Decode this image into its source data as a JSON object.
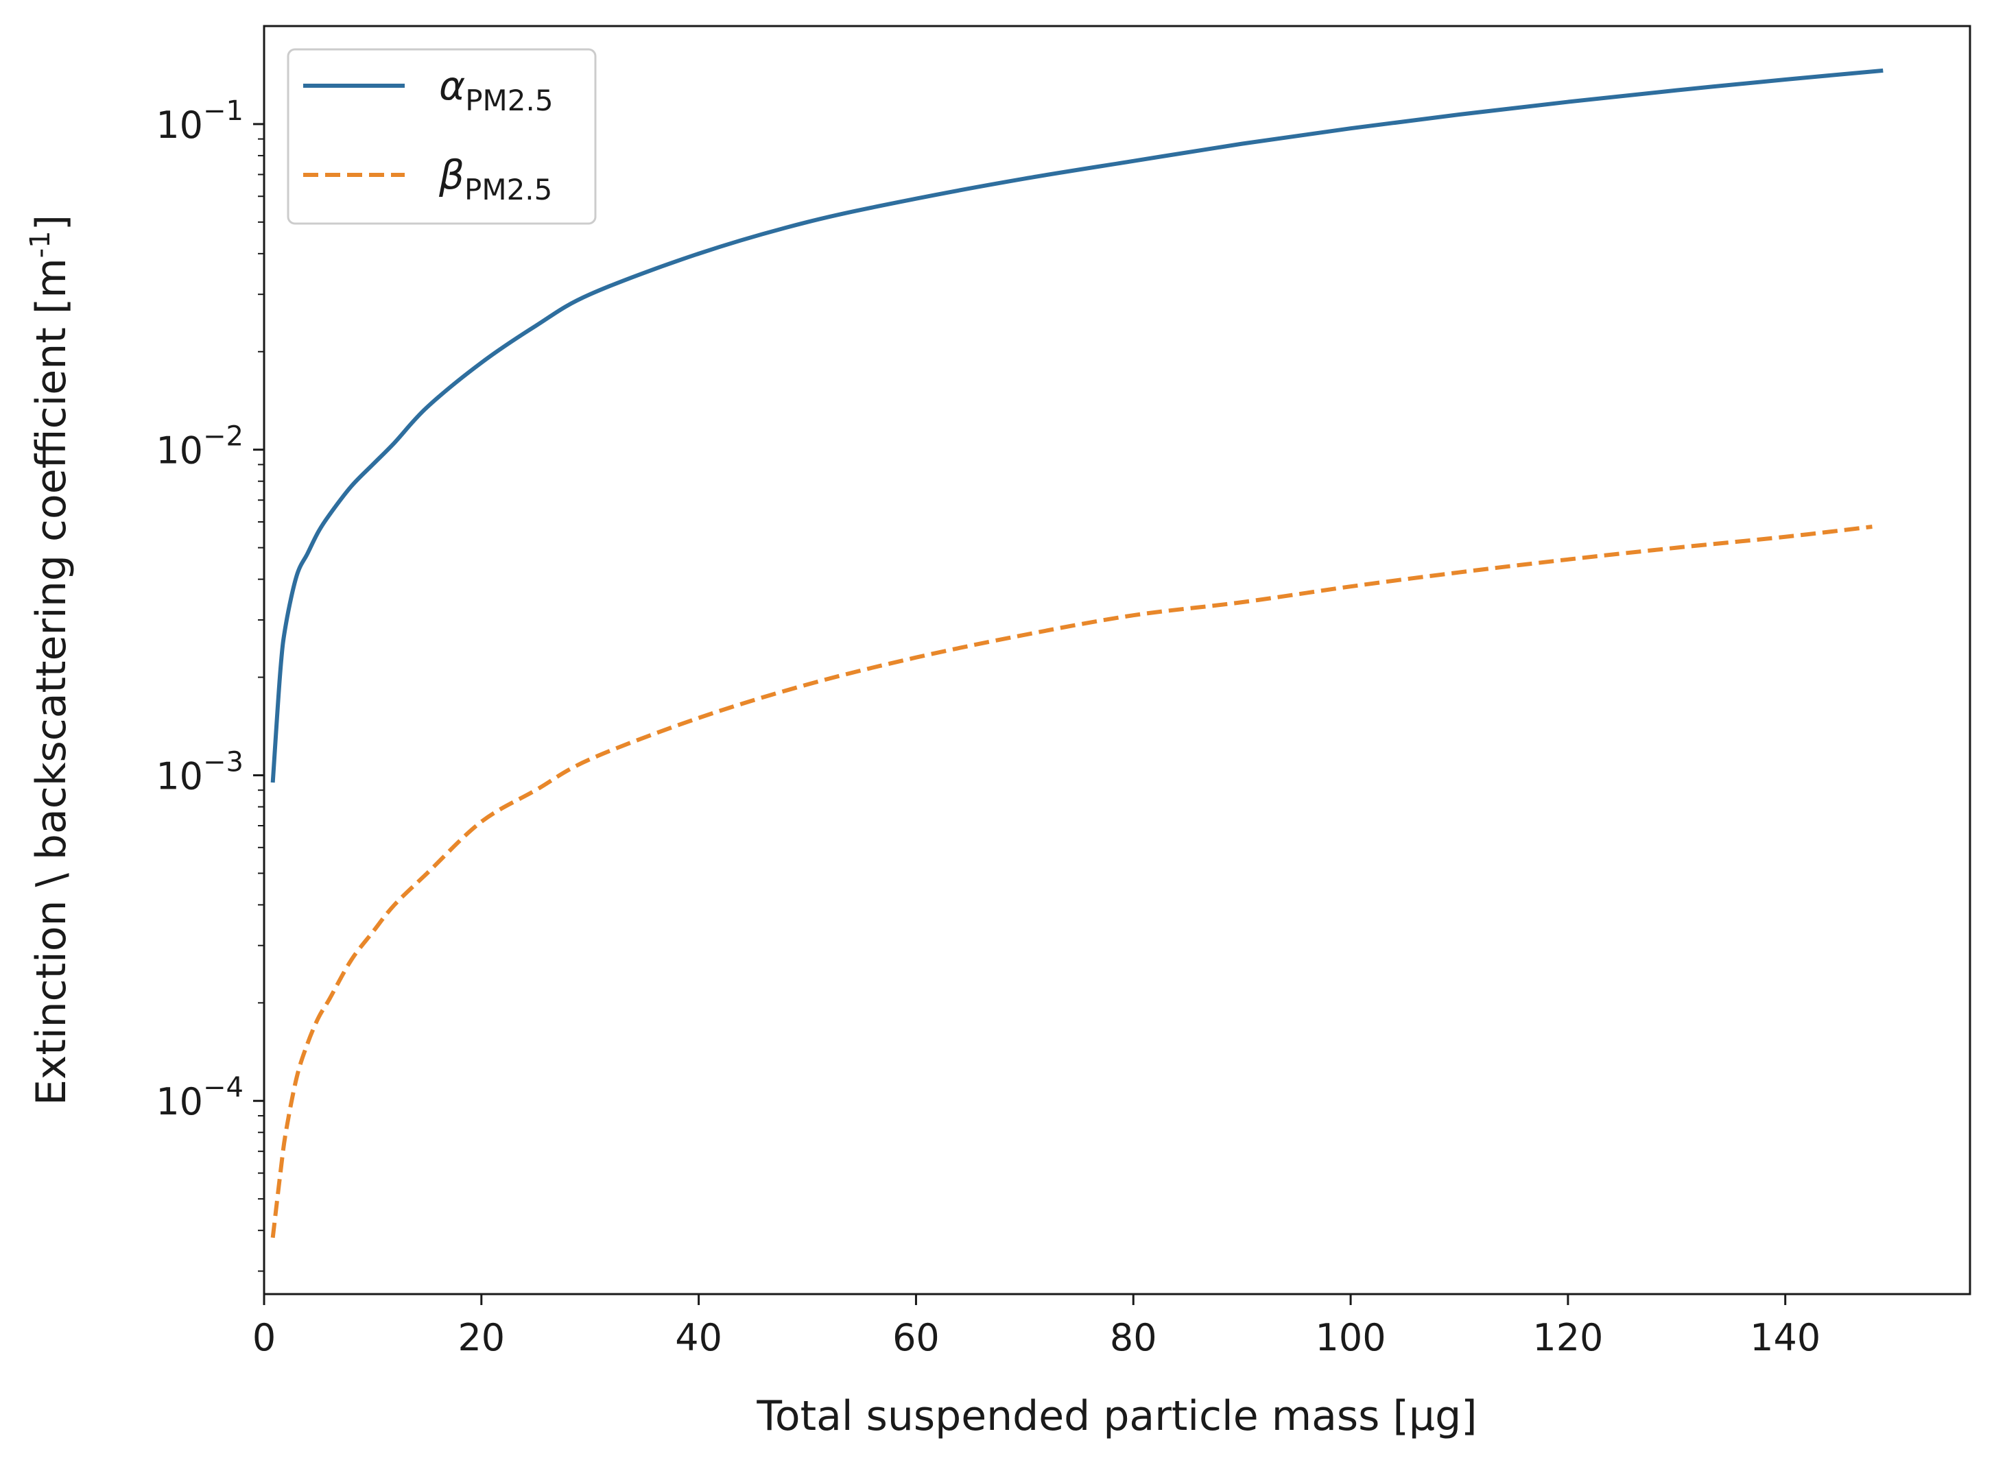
{
  "chart_data": {
    "type": "line",
    "xlabel": "Total suspended particle mass [µg]",
    "ylabel_main": "Extinction \\ backscattering coefficient [m",
    "ylabel_exp": "-1",
    "ylabel_close": "]",
    "xlim": [
      0,
      157
    ],
    "ylim": [
      2.55e-05,
      0.2
    ],
    "yscale": "log",
    "grid": false,
    "legend_position": "top-left",
    "x_ticks": [
      0,
      20,
      40,
      60,
      80,
      100,
      120,
      140
    ],
    "y_ticks": [
      {
        "value": 0.0001,
        "base": "10",
        "exp": "−4"
      },
      {
        "value": 0.001,
        "base": "10",
        "exp": "−3"
      },
      {
        "value": 0.01,
        "base": "10",
        "exp": "−2"
      },
      {
        "value": 0.1,
        "base": "10",
        "exp": "−1"
      }
    ],
    "series": [
      {
        "name_symbol": "α",
        "name_sub": "PM2.5",
        "color": "#2e6e9e",
        "dash": "solid",
        "x": [
          0.8,
          1.5,
          2,
          3,
          4,
          5,
          6,
          8,
          10,
          12,
          15,
          20,
          25,
          30,
          40,
          50,
          60,
          70,
          80,
          90,
          100,
          110,
          120,
          130,
          140,
          149
        ],
        "y": [
          0.00095,
          0.0021,
          0.0029,
          0.0041,
          0.0048,
          0.0056,
          0.0063,
          0.0077,
          0.009,
          0.0105,
          0.0135,
          0.0185,
          0.024,
          0.03,
          0.04,
          0.05,
          0.059,
          0.068,
          0.077,
          0.087,
          0.097,
          0.107,
          0.117,
          0.127,
          0.137,
          0.146
        ]
      },
      {
        "name_symbol": "β",
        "name_sub": "PM2.5",
        "color": "#e8872a",
        "dash": "dashed",
        "x": [
          0.8,
          1.5,
          2,
          3,
          4,
          5,
          6,
          8,
          10,
          12,
          15,
          20,
          25,
          30,
          40,
          50,
          60,
          70,
          80,
          90,
          100,
          110,
          120,
          130,
          140,
          148
        ],
        "y": [
          3.8e-05,
          6e-05,
          8e-05,
          0.000118,
          0.00015,
          0.00018,
          0.000205,
          0.00027,
          0.00033,
          0.0004,
          0.0005,
          0.00072,
          0.0009,
          0.00112,
          0.0015,
          0.0019,
          0.0023,
          0.0027,
          0.0031,
          0.0034,
          0.0038,
          0.0042,
          0.0046,
          0.005,
          0.0054,
          0.0058
        ]
      }
    ]
  }
}
